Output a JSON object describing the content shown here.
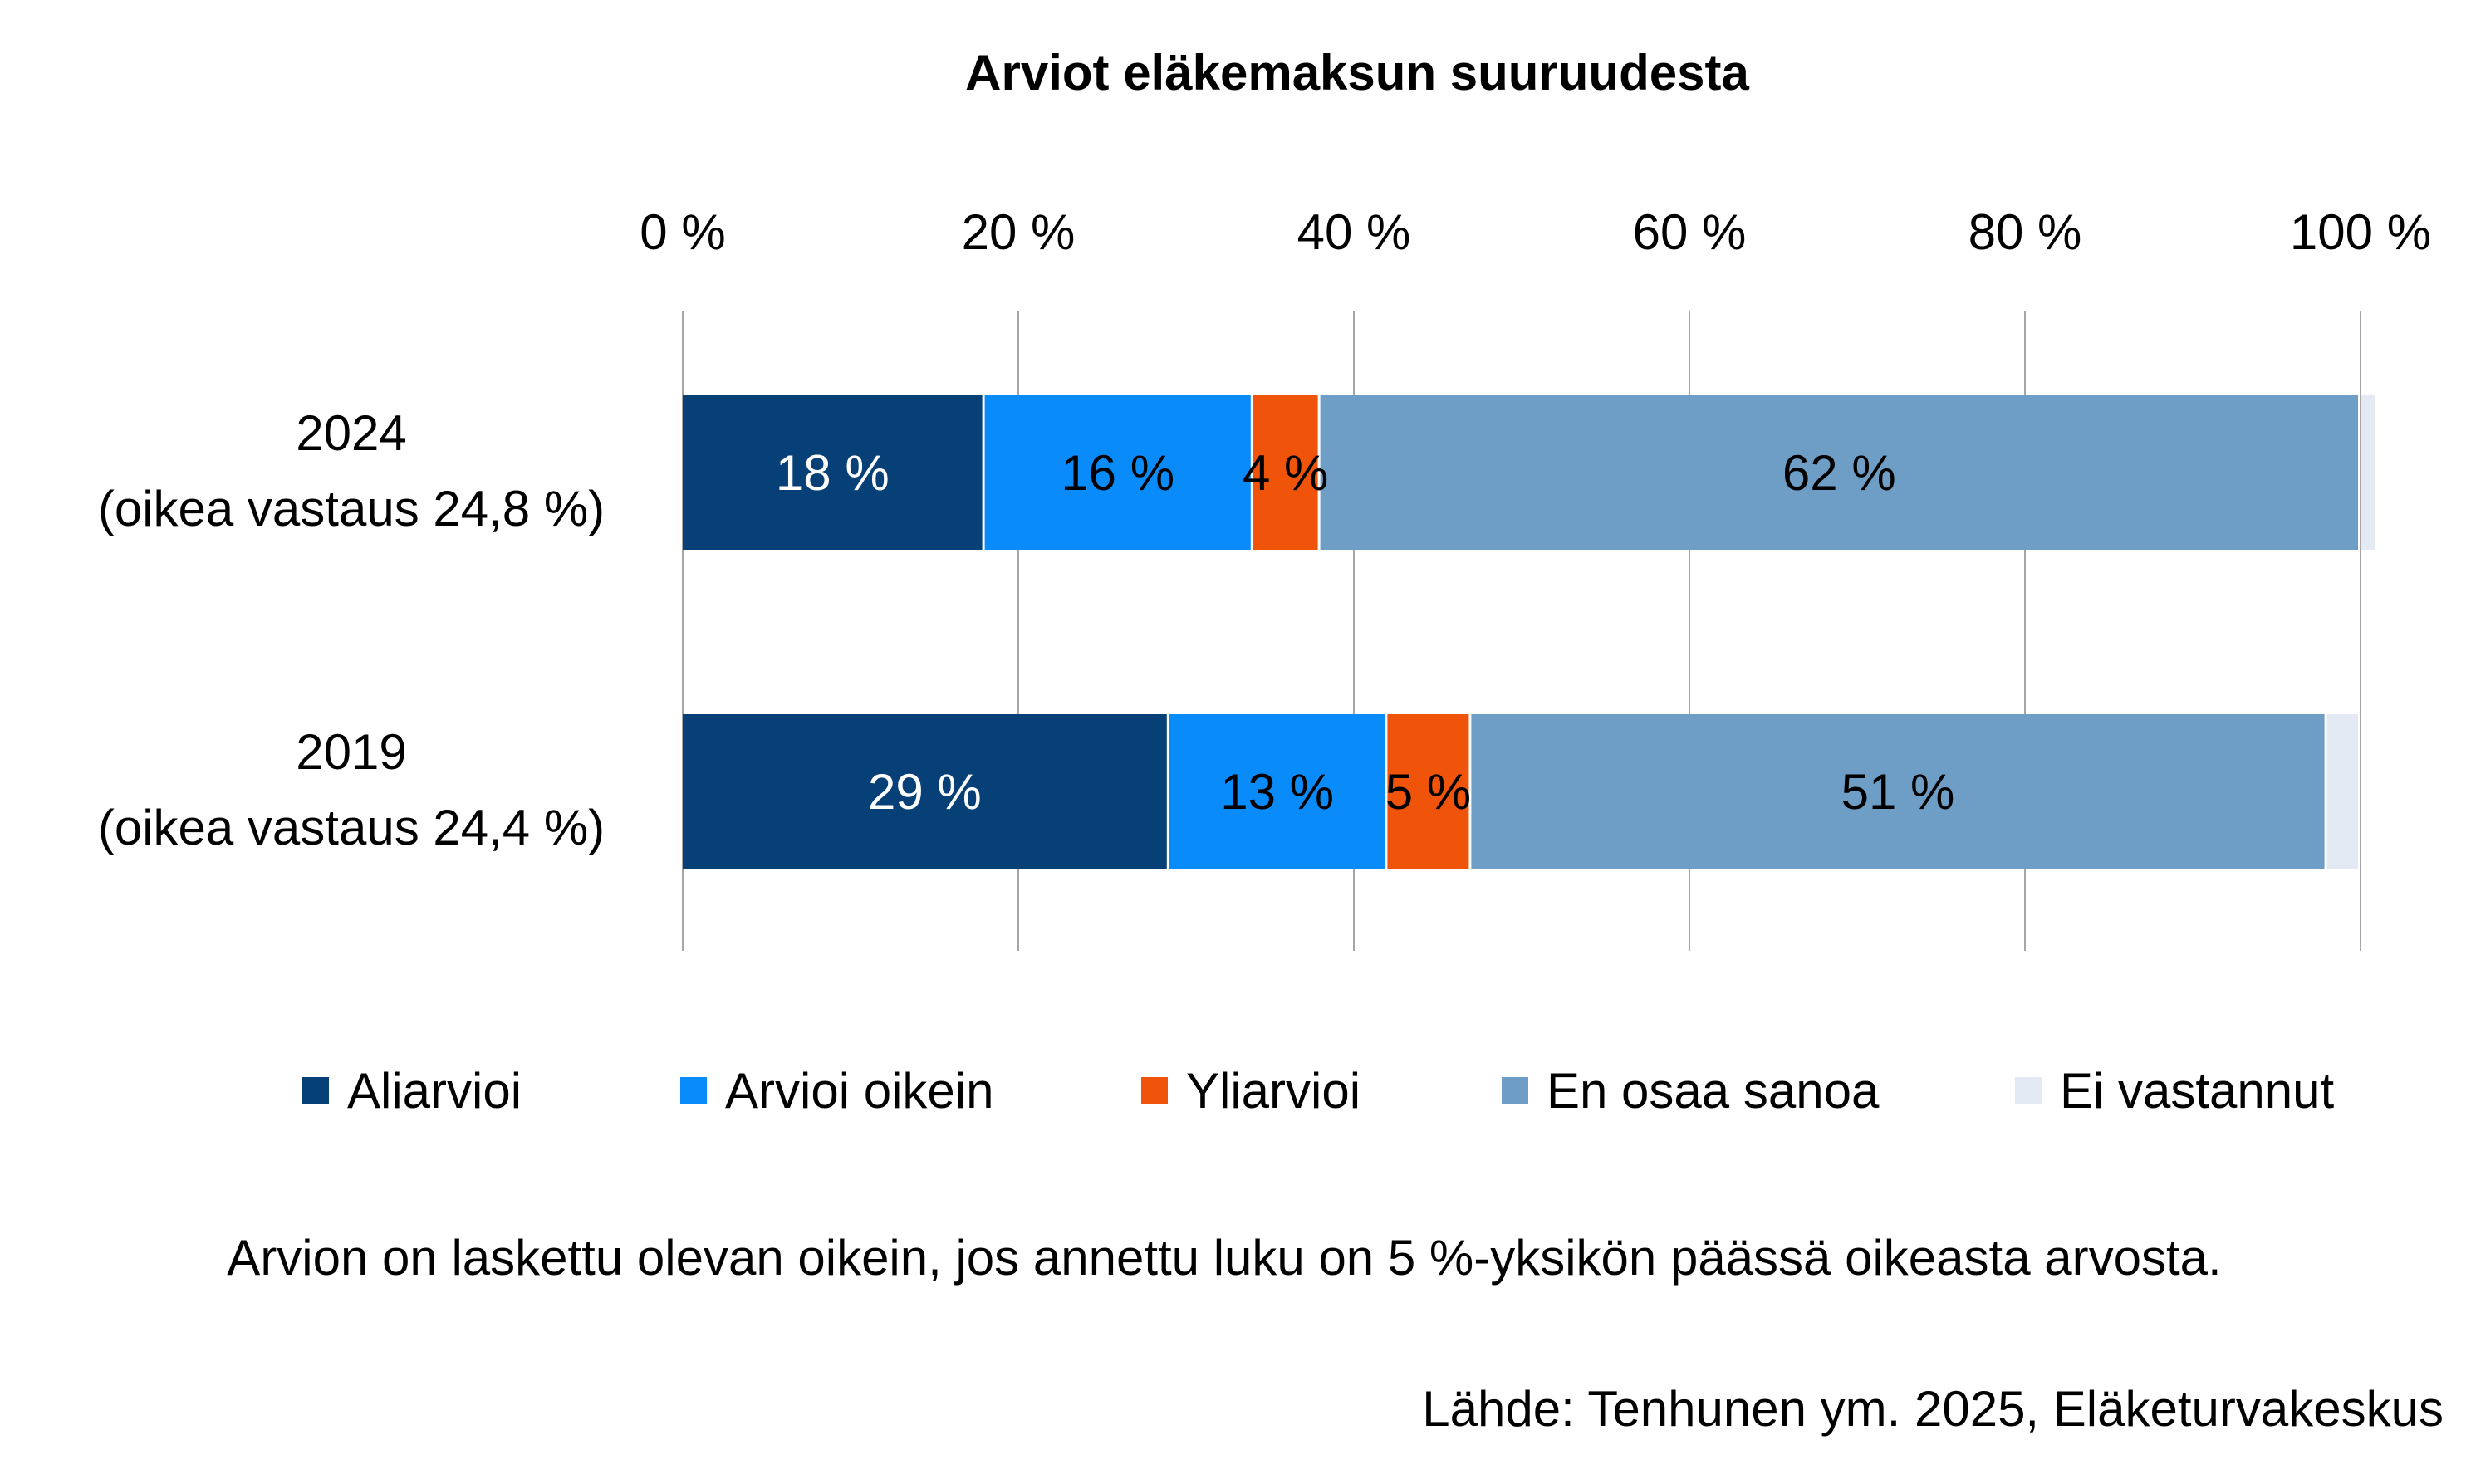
{
  "chart_data": {
    "type": "bar",
    "orientation": "horizontal",
    "stacked": true,
    "title": "Arviot eläkemaksun suuruudesta",
    "xlabel": "",
    "ylabel": "",
    "xlim": [
      0,
      100
    ],
    "x_ticks": [
      0,
      20,
      40,
      60,
      80,
      100
    ],
    "x_tick_labels": [
      "0 %",
      "20 %",
      "40 %",
      "60 %",
      "80 %",
      "100 %"
    ],
    "x_axis_position": "top",
    "grid": true,
    "legend_position": "bottom",
    "categories": [
      {
        "line1": "2024",
        "line2": "(oikea vastaus 24,8 %)"
      },
      {
        "line1": "2019",
        "line2": "(oikea vastaus 24,4 %)"
      }
    ],
    "series": [
      {
        "name": "Aliarvioi",
        "color": "#073F77",
        "label_color": "#FFFFFF",
        "values": [
          18,
          29
        ],
        "labels": [
          "18 %",
          "29 %"
        ]
      },
      {
        "name": "Arvioi oikein",
        "color": "#0A8BFA",
        "label_color": "#000000",
        "values": [
          16,
          13
        ],
        "labels": [
          "16 %",
          "13 %"
        ]
      },
      {
        "name": "Yliarvioi",
        "color": "#F0540A",
        "label_color": "#000000",
        "values": [
          4,
          5
        ],
        "labels": [
          "4 %",
          "5 %"
        ]
      },
      {
        "name": "En osaa sanoa",
        "color": "#6E9DC5",
        "label_color": "#000000",
        "values": [
          62,
          51
        ],
        "labels": [
          "62 %",
          "51 %"
        ]
      },
      {
        "name": "Ei vastannut",
        "color": "#E3EAF3",
        "label_color": "#000000",
        "values": [
          1,
          2
        ],
        "labels": [
          "",
          ""
        ]
      }
    ]
  },
  "note": "Arvion on laskettu olevan oikein, jos annettu luku on 5 %-yksikön päässä oikeasta arvosta.",
  "source": "Lähde: Tenhunen ym. 2025, Eläketurvakeskus"
}
